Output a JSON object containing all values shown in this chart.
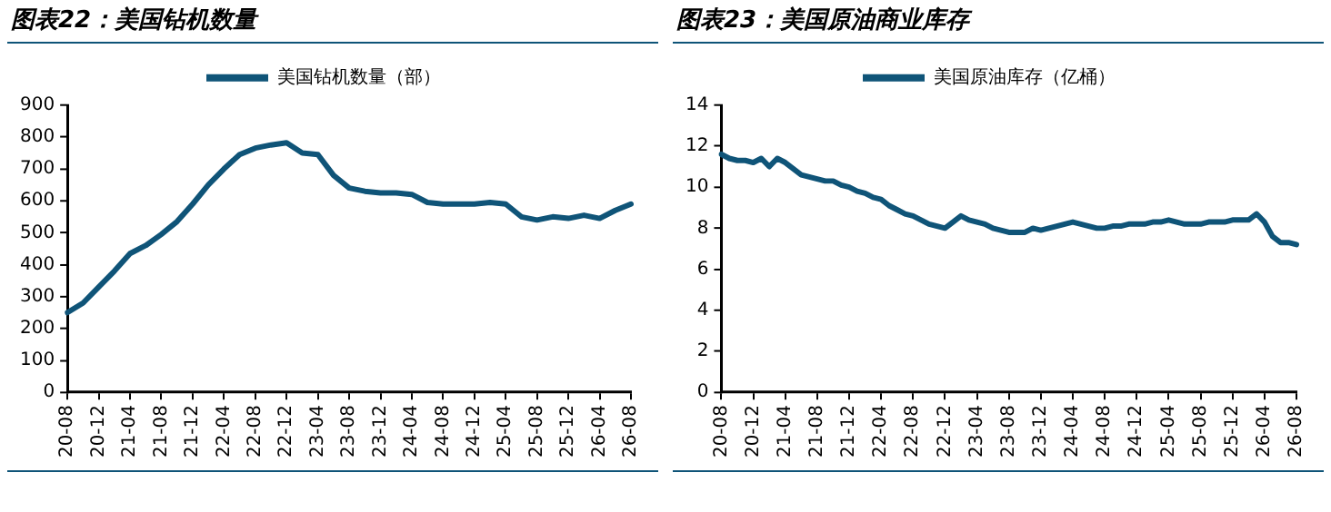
{
  "chart_data": [
    {
      "type": "line",
      "title": "图表22：美国钻机数量",
      "legend": "top",
      "grid": false,
      "marker": "none",
      "line_style": "solid",
      "categories": [
        "20-08",
        null,
        "20-12",
        null,
        "21-04",
        null,
        "21-08",
        null,
        "21-12",
        null,
        "22-04",
        null,
        "22-08",
        null,
        "22-12",
        null,
        "23-04",
        null,
        "23-08",
        null,
        "23-12",
        null,
        "24-04",
        null,
        "24-08",
        null,
        "24-12",
        null,
        "25-04",
        null,
        "25-08",
        null,
        "25-12",
        null,
        "26-04",
        null,
        "26-08"
      ],
      "series": [
        {
          "name": "美国钻机数量（部）",
          "color": "#0f5478",
          "values": [
            250,
            280,
            330,
            380,
            435,
            460,
            495,
            535,
            590,
            650,
            700,
            745,
            765,
            775,
            782,
            750,
            745,
            680,
            640,
            630,
            625,
            625,
            620,
            595,
            590,
            590,
            590,
            595,
            590,
            550,
            540,
            550,
            545,
            555,
            545,
            570,
            590
          ]
        }
      ],
      "ylim": [
        0,
        900
      ],
      "yticks": [
        0,
        100,
        200,
        300,
        400,
        500,
        600,
        700,
        800,
        900
      ]
    },
    {
      "type": "line",
      "title": "图表23：美国原油商业库存",
      "legend": "top",
      "grid": false,
      "marker": "none",
      "line_style": "solid",
      "categories": [
        "20-08",
        null,
        null,
        null,
        "20-12",
        null,
        null,
        null,
        "21-04",
        null,
        null,
        null,
        "21-08",
        null,
        null,
        null,
        "21-12",
        null,
        null,
        null,
        "22-04",
        null,
        null,
        null,
        "22-08",
        null,
        null,
        null,
        "22-12",
        null,
        null,
        null,
        "23-04",
        null,
        null,
        null,
        "23-08",
        null,
        null,
        null,
        "23-12",
        null,
        null,
        null,
        "24-04",
        null,
        null,
        null,
        "24-08",
        null,
        null,
        null,
        "24-12",
        null,
        null,
        null,
        "25-04",
        null,
        null,
        null,
        "25-08",
        null,
        null,
        null,
        "25-12",
        null,
        null,
        null,
        "26-04",
        null,
        null,
        null,
        "26-08"
      ],
      "series": [
        {
          "name": "美国原油库存（亿桶）",
          "color": "#0f5478",
          "values": [
            11.6,
            11.4,
            11.3,
            11.3,
            11.2,
            11.4,
            11.0,
            11.4,
            11.2,
            10.9,
            10.6,
            10.5,
            10.4,
            10.3,
            10.3,
            10.1,
            10.0,
            9.8,
            9.7,
            9.5,
            9.4,
            9.1,
            8.9,
            8.7,
            8.6,
            8.4,
            8.2,
            8.1,
            8.0,
            8.3,
            8.6,
            8.4,
            8.3,
            8.2,
            8.0,
            7.9,
            7.8,
            7.8,
            7.8,
            8.0,
            7.9,
            8.0,
            8.1,
            8.2,
            8.3,
            8.2,
            8.1,
            8.0,
            8.0,
            8.1,
            8.1,
            8.2,
            8.2,
            8.2,
            8.3,
            8.3,
            8.4,
            8.3,
            8.2,
            8.2,
            8.2,
            8.3,
            8.3,
            8.3,
            8.4,
            8.4,
            8.4,
            8.7,
            8.3,
            7.6,
            7.3,
            7.3,
            7.2
          ]
        }
      ],
      "ylim": [
        0,
        14
      ],
      "yticks": [
        0,
        2,
        4,
        6,
        8,
        10,
        12,
        14
      ]
    }
  ]
}
